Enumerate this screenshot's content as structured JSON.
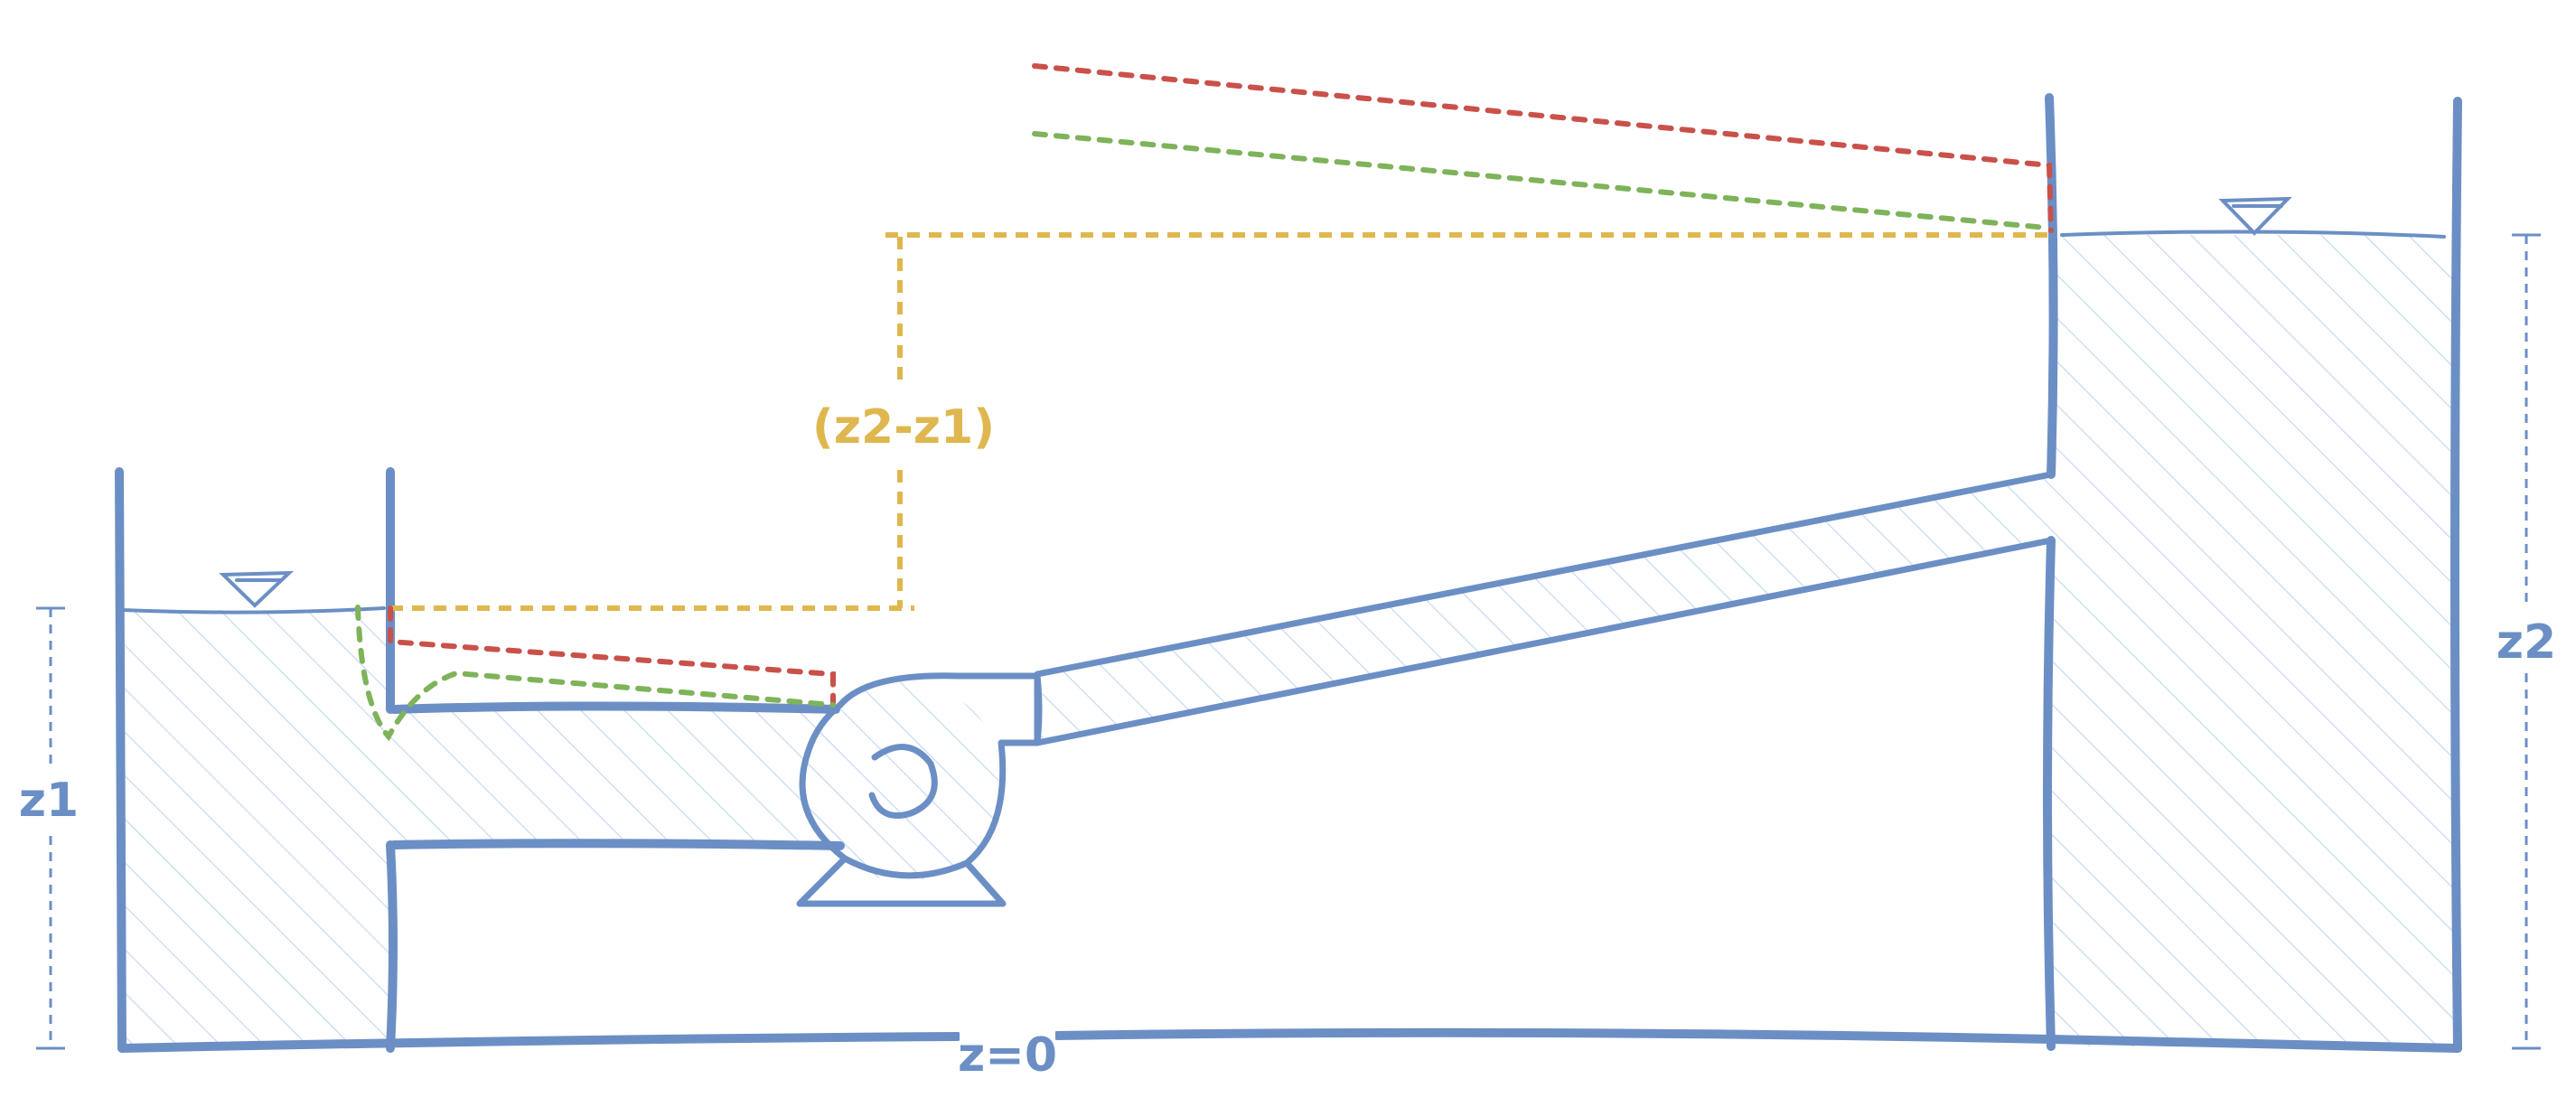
{
  "labels": {
    "z1": "z1",
    "z2": "z2",
    "datum": "z=0",
    "head_difference": "(z2-z1)"
  },
  "colors": {
    "structure": "#6b8fc5",
    "water_hatch": "#cfe0f5",
    "elevation_difference": "#dfb74e",
    "energy_line": "#c9514a",
    "hydraulic_grade_line": "#7eb35a"
  },
  "icons": {
    "water_surface_marker": "inverted-triangle",
    "pump": "centrifugal-pump"
  }
}
